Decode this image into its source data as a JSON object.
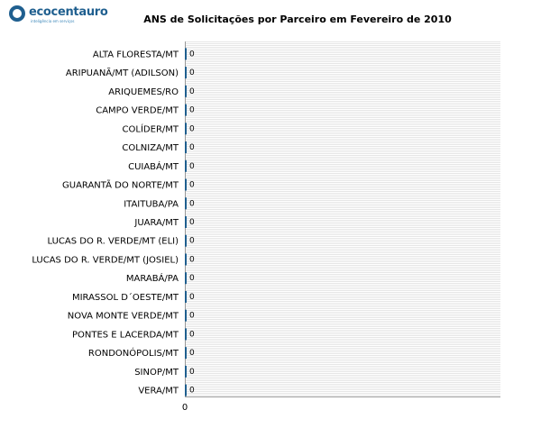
{
  "logo": {
    "name": "ecocentauro",
    "tagline": "inteligência em serviços"
  },
  "colors": {
    "bar": "#1f5f8f",
    "logo": "#1f5f8f",
    "stripe": "#e6e6e6"
  },
  "chart_data": {
    "type": "bar",
    "orientation": "horizontal",
    "title": "ANS de Solicitações por Parceiro em Fevereiro de 2010",
    "categories": [
      "ALTA FLORESTA/MT",
      "ARIPUANÃ/MT (ADILSON)",
      "ARIQUEMES/RO",
      "CAMPO VERDE/MT",
      "COLÍDER/MT",
      "COLNIZA/MT",
      "CUIABÁ/MT",
      "GUARANTÃ DO NORTE/MT",
      "ITAITUBA/PA",
      "JUARA/MT",
      "LUCAS DO R. VERDE/MT (ELI)",
      "LUCAS DO R. VERDE/MT (JOSIEL)",
      "MARABÁ/PA",
      "MIRASSOL D´OESTE/MT",
      "NOVA MONTE VERDE/MT",
      "PONTES E LACERDA/MT",
      "RONDONÓPOLIS/MT",
      "SINOP/MT",
      "VERA/MT"
    ],
    "values": [
      0,
      0,
      0,
      0,
      0,
      0,
      0,
      0,
      0,
      0,
      0,
      0,
      0,
      0,
      0,
      0,
      0,
      0,
      0
    ],
    "data_labels": [
      "0",
      "0",
      "0",
      "0",
      "0",
      "0",
      "0",
      "0",
      "0",
      "0",
      "0",
      "0",
      "0",
      "0",
      "0",
      "0",
      "0",
      "0",
      "0"
    ],
    "x_ticks": [
      "0"
    ],
    "xlabel": "",
    "ylabel": "",
    "grid": true,
    "legend": "none"
  }
}
